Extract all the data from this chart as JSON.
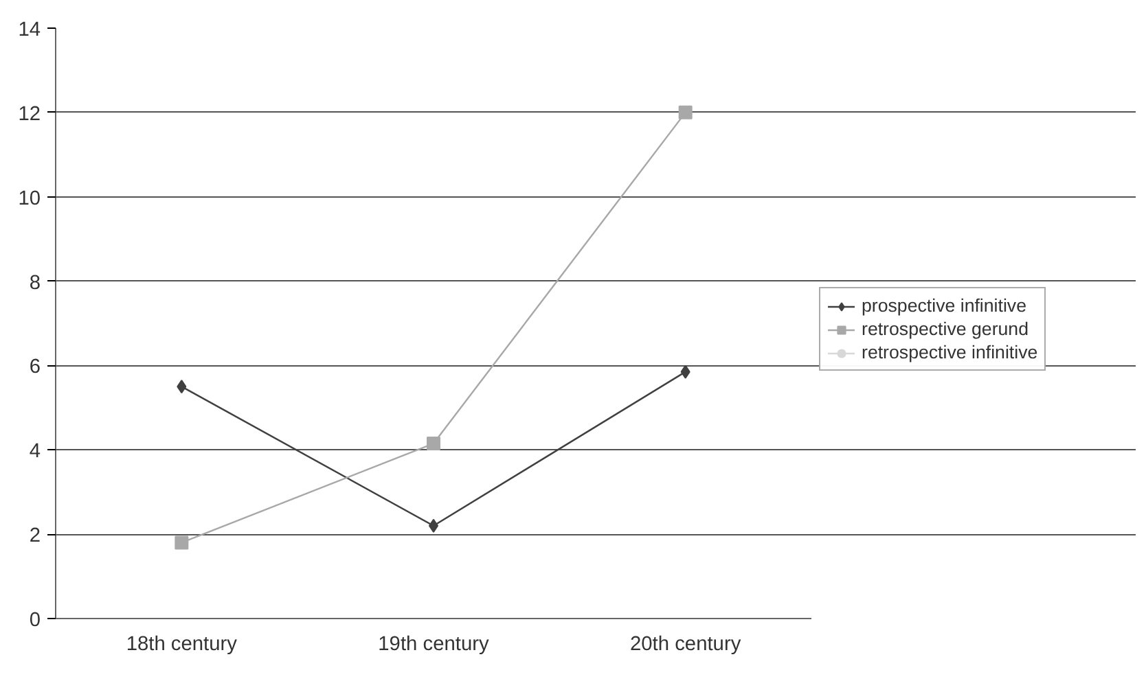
{
  "chart_data": {
    "type": "line",
    "categories": [
      "18th century",
      "19th century",
      "20th century"
    ],
    "series": [
      {
        "name": "prospective infinitive",
        "color": "#404040",
        "marker": "diamond",
        "values": [
          5.5,
          2.2,
          5.85
        ]
      },
      {
        "name": "retrospective gerund",
        "color": "#a8a8a8",
        "marker": "square",
        "values": [
          1.8,
          4.15,
          12.0
        ]
      },
      {
        "name": "retrospective infinitive",
        "color": "#d8d8d8",
        "marker": "circle",
        "values": [
          null,
          null,
          null
        ]
      }
    ],
    "ylim": [
      0,
      14
    ],
    "yticks": [
      0,
      2,
      4,
      6,
      8,
      10,
      12,
      14
    ],
    "grid": "y",
    "legend": "right",
    "line_style": "solid"
  }
}
